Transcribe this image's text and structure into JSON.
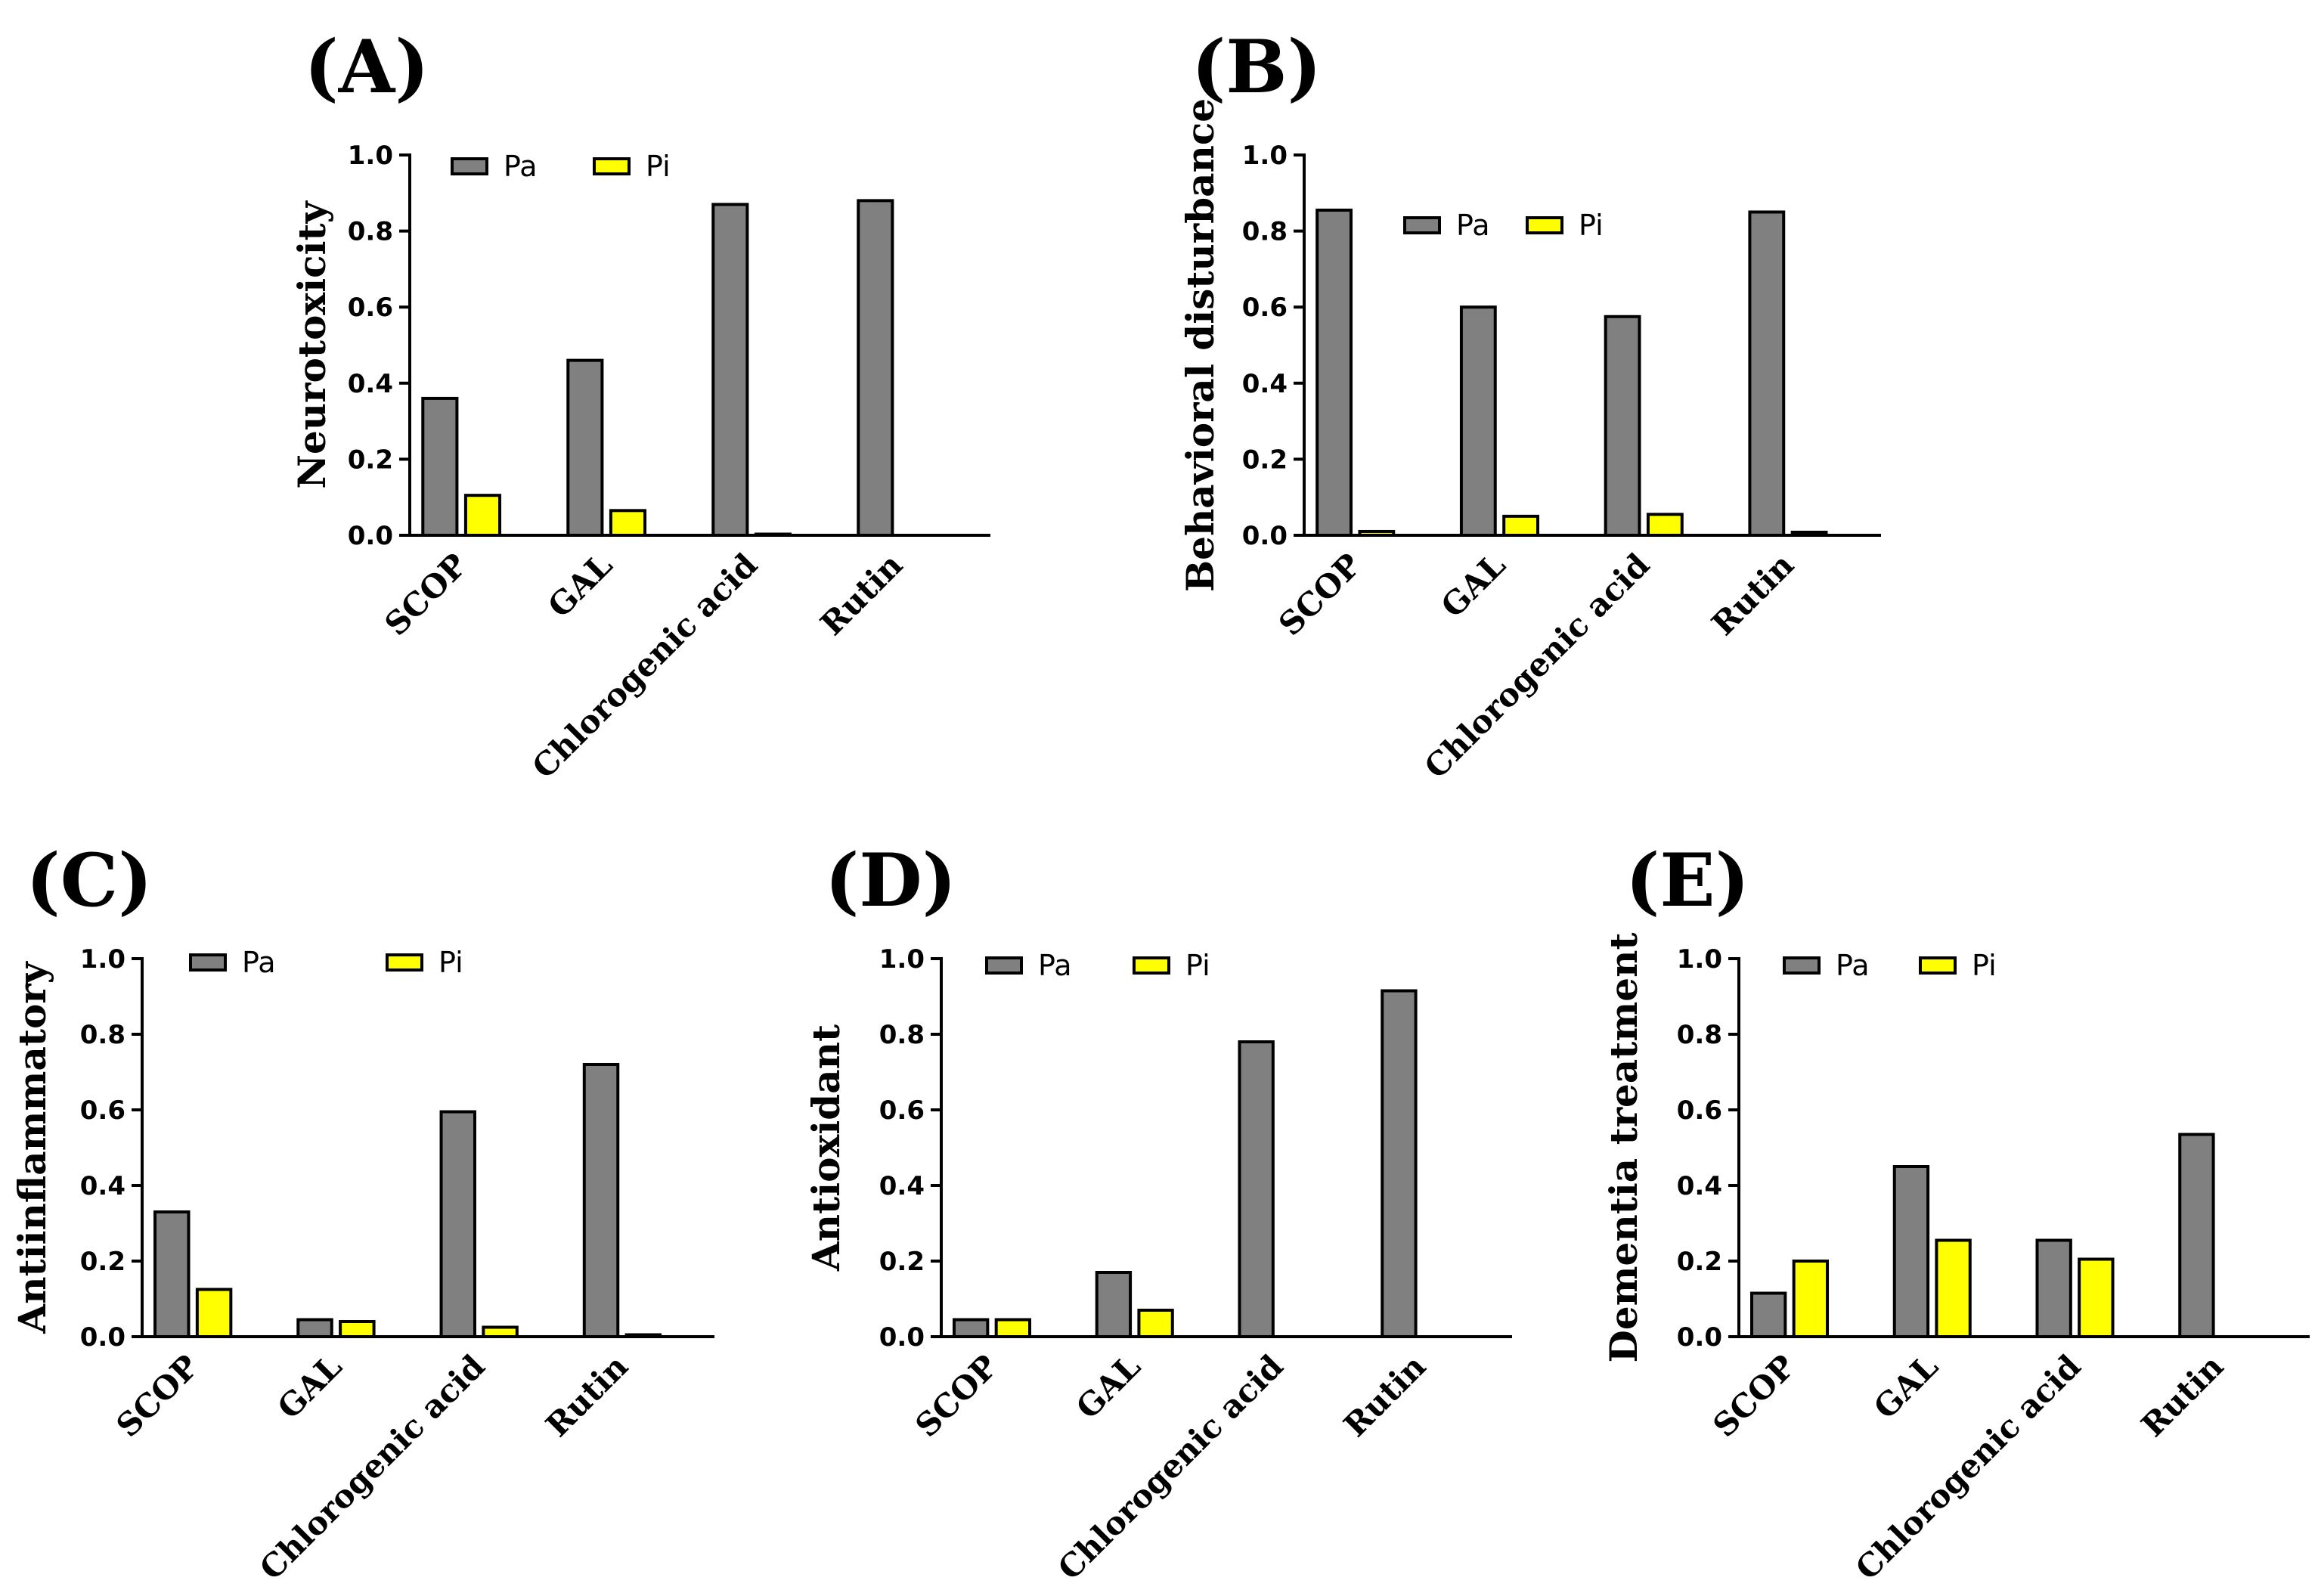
{
  "colors": {
    "pa": "#808080",
    "pi": "#ffff00",
    "stroke": "#000000"
  },
  "chart_data": [
    {
      "panel": "(A)",
      "type": "bar",
      "ylabel": "Neurotoxicity",
      "categories": [
        "SCOP",
        "GAL",
        "Chlorogenic acid",
        "Rutin"
      ],
      "series": [
        {
          "name": "Pa",
          "values": [
            0.36,
            0.46,
            0.87,
            0.88
          ]
        },
        {
          "name": "Pi",
          "values": [
            0.105,
            0.065,
            0.003,
            0.0
          ]
        }
      ],
      "ylim": [
        0,
        1.0
      ],
      "yticks": [
        "0.0",
        "0.2",
        "0.4",
        "0.6",
        "0.8",
        "1.0"
      ],
      "legend": "top-left"
    },
    {
      "panel": "(B)",
      "type": "bar",
      "ylabel": "Behavioral disturbance",
      "categories": [
        "SCOP",
        "GAL",
        "Chlorogenic acid",
        "Rutin"
      ],
      "series": [
        {
          "name": "Pa",
          "values": [
            0.855,
            0.6,
            0.575,
            0.85
          ]
        },
        {
          "name": "Pi",
          "values": [
            0.01,
            0.05,
            0.055,
            0.008
          ]
        }
      ],
      "ylim": [
        0,
        1.0
      ],
      "yticks": [
        "0.0",
        "0.2",
        "0.4",
        "0.6",
        "0.8",
        "1.0"
      ],
      "legend": "top-center"
    },
    {
      "panel": "(C)",
      "type": "bar",
      "ylabel": "Antiinflammatory",
      "categories": [
        "SCOP",
        "GAL",
        "Chlorogenic acid",
        "Rutin"
      ],
      "series": [
        {
          "name": "Pa",
          "values": [
            0.33,
            0.045,
            0.595,
            0.72
          ]
        },
        {
          "name": "Pi",
          "values": [
            0.125,
            0.04,
            0.025,
            0.005
          ]
        }
      ],
      "ylim": [
        0,
        1.0
      ],
      "yticks": [
        "0.0",
        "0.2",
        "0.4",
        "0.6",
        "0.8",
        "1.0"
      ],
      "legend": "top-left"
    },
    {
      "panel": "(D)",
      "type": "bar",
      "ylabel": "Antioxidant",
      "categories": [
        "SCOP",
        "GAL",
        "Chlorogenic acid",
        "Rutin"
      ],
      "series": [
        {
          "name": "Pa",
          "values": [
            0.045,
            0.17,
            0.78,
            0.915
          ]
        },
        {
          "name": "Pi",
          "values": [
            0.045,
            0.07,
            0.0,
            0.0
          ]
        }
      ],
      "ylim": [
        0,
        1.0
      ],
      "yticks": [
        "0.0",
        "0.2",
        "0.4",
        "0.6",
        "0.8",
        "1.0"
      ],
      "legend": "top-left"
    },
    {
      "panel": "(E)",
      "type": "bar",
      "ylabel": "Dementia treatment",
      "categories": [
        "SCOP",
        "GAL",
        "Chlorogenic acid",
        "Rutin"
      ],
      "series": [
        {
          "name": "Pa",
          "values": [
            0.115,
            0.45,
            0.255,
            0.535
          ]
        },
        {
          "name": "Pi",
          "values": [
            0.2,
            0.255,
            0.205,
            0.0
          ]
        }
      ],
      "ylim": [
        0,
        1.0
      ],
      "yticks": [
        "0.0",
        "0.2",
        "0.4",
        "0.6",
        "0.8",
        "1.0"
      ],
      "legend": "top-left"
    }
  ]
}
